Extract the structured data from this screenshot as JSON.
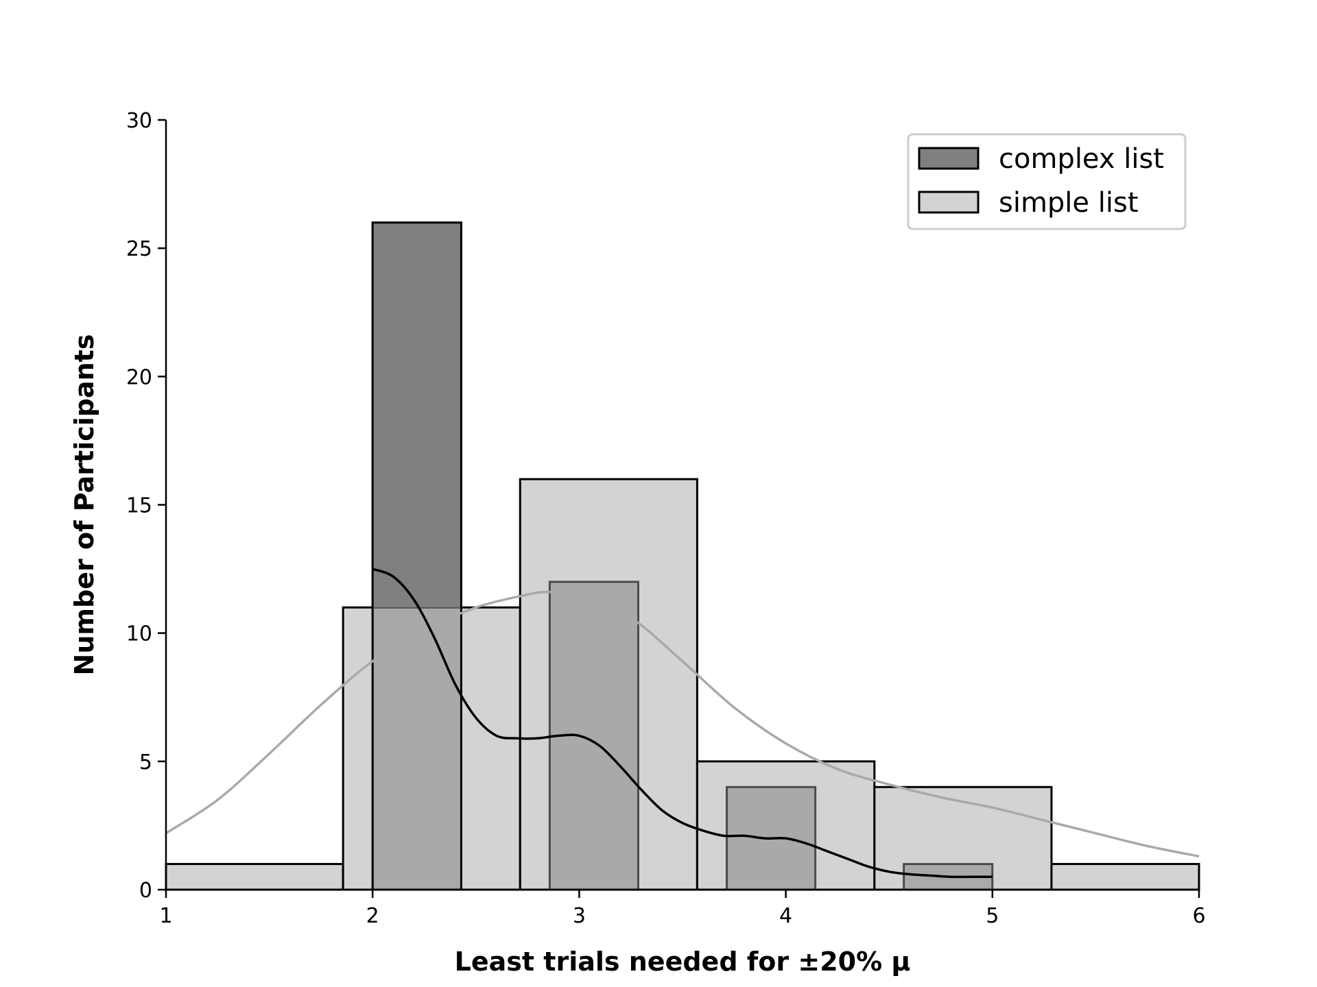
{
  "chart_data": {
    "type": "bar",
    "title": "",
    "xlabel": "Least trials needed for ±20% μ",
    "ylabel": "Number of Participants",
    "xlim": [
      1,
      6
    ],
    "ylim": [
      0,
      30
    ],
    "x_ticks": [
      "1",
      "2",
      "3",
      "4",
      "5",
      "6"
    ],
    "y_ticks": [
      "0",
      "5",
      "10",
      "15",
      "20",
      "25",
      "30"
    ],
    "grid": false,
    "legend_position": "top-right",
    "series": [
      {
        "name": "simple list",
        "color": "#d3d3d3",
        "bins": [
          {
            "start": 1.0,
            "end": 1.857,
            "count": 1
          },
          {
            "start": 1.857,
            "end": 2.714,
            "count": 11
          },
          {
            "start": 2.714,
            "end": 3.571,
            "count": 16
          },
          {
            "start": 3.571,
            "end": 4.429,
            "count": 5
          },
          {
            "start": 4.429,
            "end": 5.286,
            "count": 4
          },
          {
            "start": 5.286,
            "end": 6.0,
            "count": 1
          }
        ],
        "kde": {
          "color": "#a9a9a9",
          "x": [
            1.0,
            1.25,
            1.5,
            1.75,
            2.0,
            2.25,
            2.5,
            2.75,
            2.85,
            3.0,
            3.25,
            3.5,
            3.75,
            4.0,
            4.25,
            4.5,
            4.75,
            5.0,
            5.25,
            5.5,
            5.75,
            6.0
          ],
          "y": [
            2.2,
            3.5,
            5.3,
            7.2,
            8.9,
            10.1,
            11.0,
            11.5,
            11.6,
            11.5,
            10.6,
            8.9,
            7.1,
            5.7,
            4.7,
            4.1,
            3.6,
            3.2,
            2.7,
            2.2,
            1.7,
            1.3
          ]
        }
      },
      {
        "name": "complex list",
        "color": "#808080",
        "bins": [
          {
            "start": 2.0,
            "end": 2.429,
            "count": 26
          },
          {
            "start": 2.857,
            "end": 3.286,
            "count": 12
          },
          {
            "start": 3.714,
            "end": 4.143,
            "count": 4
          },
          {
            "start": 4.571,
            "end": 5.0,
            "count": 1
          }
        ],
        "kde": {
          "color": "#000000",
          "x": [
            2.0,
            2.1,
            2.2,
            2.3,
            2.4,
            2.5,
            2.6,
            2.7,
            2.8,
            2.9,
            3.0,
            3.1,
            3.2,
            3.3,
            3.4,
            3.5,
            3.6,
            3.7,
            3.8,
            3.9,
            4.0,
            4.1,
            4.2,
            4.3,
            4.4,
            4.5,
            4.6,
            4.7,
            4.8,
            4.9,
            5.0
          ],
          "y": [
            12.5,
            12.2,
            11.3,
            9.8,
            8.0,
            6.7,
            6.0,
            5.9,
            5.9,
            6.0,
            6.0,
            5.6,
            4.8,
            3.9,
            3.1,
            2.6,
            2.3,
            2.1,
            2.1,
            2.0,
            2.0,
            1.8,
            1.5,
            1.2,
            0.9,
            0.7,
            0.6,
            0.55,
            0.5,
            0.5,
            0.5
          ]
        }
      }
    ]
  }
}
